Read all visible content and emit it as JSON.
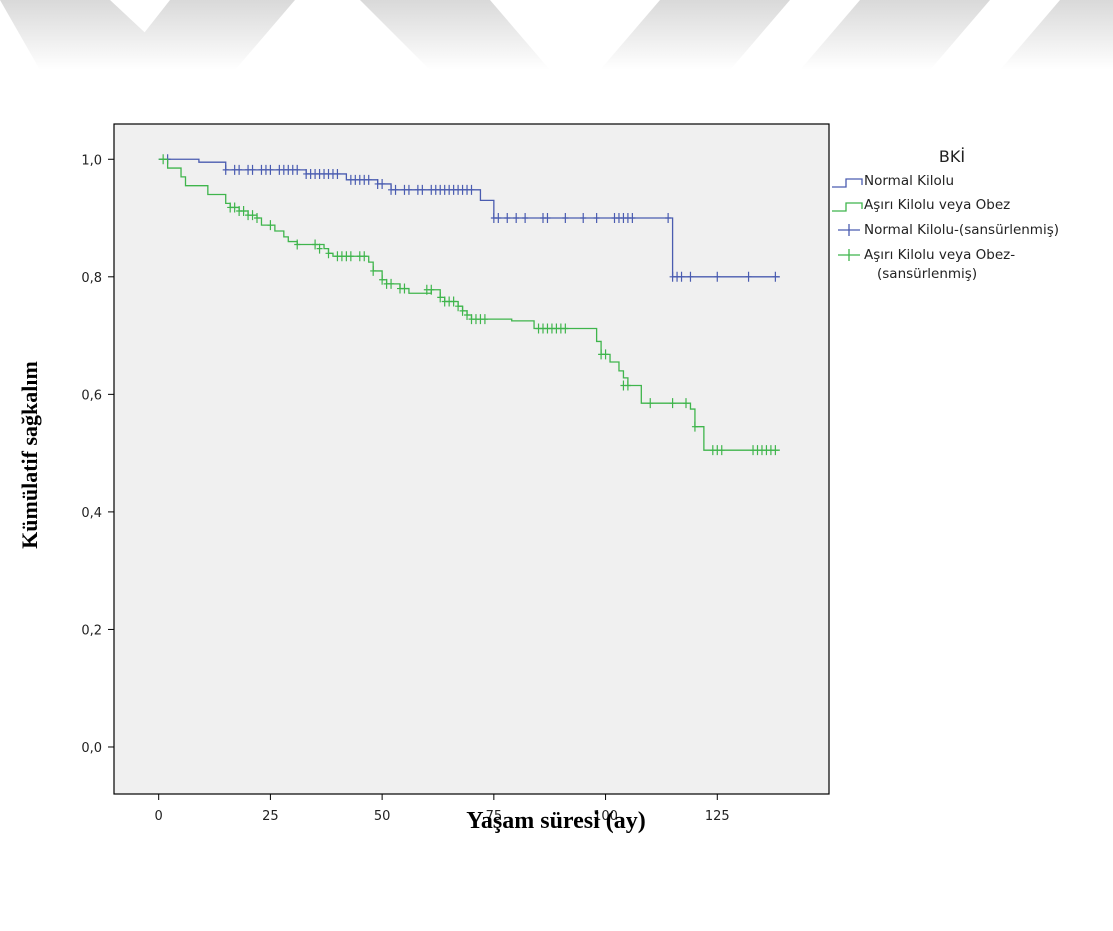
{
  "chart_data": {
    "type": "line",
    "subtype": "kaplan-meier step",
    "xlabel": "Yaşam süresi (ay)",
    "ylabel": "Kümülatif sağkalım",
    "xlim": [
      -10,
      150
    ],
    "ylim": [
      -0.08,
      1.06
    ],
    "x_ticks": [
      0,
      25,
      50,
      75,
      100,
      125
    ],
    "x_tick_labels": [
      "0",
      "25",
      "50",
      "75",
      "100",
      "125"
    ],
    "y_ticks": [
      0.0,
      0.2,
      0.4,
      0.6,
      0.8,
      1.0
    ],
    "y_tick_labels": [
      "0,0",
      "0,2",
      "0,4",
      "0,6",
      "0,8",
      "1,0"
    ],
    "grid": false,
    "legend": {
      "title": "BKİ",
      "placement": "right",
      "entries": [
        {
          "label": "Normal Kilolu",
          "kind": "line",
          "color": "#4a5cb0"
        },
        {
          "label": "Aşırı Kilolu veya Obez",
          "kind": "line",
          "color": "#3fb54c"
        },
        {
          "label": "Normal Kilolu-(sansürlenmiş)",
          "kind": "censor",
          "color": "#4a5cb0"
        },
        {
          "label": "Aşırı Kilolu veya Obez-",
          "label2": "(sansürlenmiş)",
          "kind": "censor",
          "color": "#3fb54c"
        }
      ]
    },
    "series": [
      {
        "name": "Normal Kilolu",
        "color": "#4a5cb0",
        "steps": [
          [
            0,
            1.0
          ],
          [
            9,
            0.995
          ],
          [
            15,
            0.982
          ],
          [
            33,
            0.975
          ],
          [
            42,
            0.965
          ],
          [
            49,
            0.958
          ],
          [
            52,
            0.948
          ],
          [
            72,
            0.93
          ],
          [
            75,
            0.9
          ],
          [
            115,
            0.8
          ],
          [
            139,
            0.8
          ]
        ],
        "censored": [
          [
            2,
            1.0
          ],
          [
            15,
            0.982
          ],
          [
            17,
            0.982
          ],
          [
            18,
            0.982
          ],
          [
            20,
            0.982
          ],
          [
            21,
            0.982
          ],
          [
            23,
            0.982
          ],
          [
            24,
            0.982
          ],
          [
            25,
            0.982
          ],
          [
            27,
            0.982
          ],
          [
            28,
            0.982
          ],
          [
            29,
            0.982
          ],
          [
            30,
            0.982
          ],
          [
            31,
            0.982
          ],
          [
            33,
            0.975
          ],
          [
            34,
            0.975
          ],
          [
            35,
            0.975
          ],
          [
            36,
            0.975
          ],
          [
            37,
            0.975
          ],
          [
            38,
            0.975
          ],
          [
            39,
            0.975
          ],
          [
            40,
            0.975
          ],
          [
            43,
            0.965
          ],
          [
            44,
            0.965
          ],
          [
            45,
            0.965
          ],
          [
            46,
            0.965
          ],
          [
            47,
            0.965
          ],
          [
            49,
            0.958
          ],
          [
            50,
            0.958
          ],
          [
            52,
            0.948
          ],
          [
            53,
            0.948
          ],
          [
            55,
            0.948
          ],
          [
            56,
            0.948
          ],
          [
            58,
            0.948
          ],
          [
            59,
            0.948
          ],
          [
            61,
            0.948
          ],
          [
            62,
            0.948
          ],
          [
            63,
            0.948
          ],
          [
            64,
            0.948
          ],
          [
            65,
            0.948
          ],
          [
            66,
            0.948
          ],
          [
            67,
            0.948
          ],
          [
            68,
            0.948
          ],
          [
            69,
            0.948
          ],
          [
            70,
            0.948
          ],
          [
            75,
            0.9
          ],
          [
            76,
            0.9
          ],
          [
            78,
            0.9
          ],
          [
            80,
            0.9
          ],
          [
            82,
            0.9
          ],
          [
            86,
            0.9
          ],
          [
            87,
            0.9
          ],
          [
            91,
            0.9
          ],
          [
            95,
            0.9
          ],
          [
            98,
            0.9
          ],
          [
            102,
            0.9
          ],
          [
            103,
            0.9
          ],
          [
            104,
            0.9
          ],
          [
            105,
            0.9
          ],
          [
            106,
            0.9
          ],
          [
            114,
            0.9
          ],
          [
            115,
            0.8
          ],
          [
            116,
            0.8
          ],
          [
            117,
            0.8
          ],
          [
            119,
            0.8
          ],
          [
            125,
            0.8
          ],
          [
            132,
            0.8
          ],
          [
            138,
            0.8
          ]
        ]
      },
      {
        "name": "Aşırı Kilolu veya Obez",
        "color": "#3fb54c",
        "steps": [
          [
            0,
            1.0
          ],
          [
            2,
            0.985
          ],
          [
            5,
            0.97
          ],
          [
            6,
            0.955
          ],
          [
            11,
            0.94
          ],
          [
            15,
            0.925
          ],
          [
            16,
            0.918
          ],
          [
            18,
            0.912
          ],
          [
            20,
            0.905
          ],
          [
            22,
            0.9
          ],
          [
            23,
            0.888
          ],
          [
            26,
            0.878
          ],
          [
            28,
            0.868
          ],
          [
            29,
            0.86
          ],
          [
            31,
            0.855
          ],
          [
            37,
            0.848
          ],
          [
            38,
            0.84
          ],
          [
            39,
            0.835
          ],
          [
            47,
            0.825
          ],
          [
            48,
            0.81
          ],
          [
            50,
            0.795
          ],
          [
            51,
            0.788
          ],
          [
            54,
            0.78
          ],
          [
            56,
            0.772
          ],
          [
            61,
            0.778
          ],
          [
            63,
            0.765
          ],
          [
            64,
            0.758
          ],
          [
            67,
            0.75
          ],
          [
            68,
            0.742
          ],
          [
            69,
            0.735
          ],
          [
            70,
            0.728
          ],
          [
            77,
            0.728
          ],
          [
            79,
            0.725
          ],
          [
            84,
            0.712
          ],
          [
            94,
            0.712
          ],
          [
            98,
            0.69
          ],
          [
            99,
            0.668
          ],
          [
            101,
            0.655
          ],
          [
            103,
            0.64
          ],
          [
            104,
            0.628
          ],
          [
            105,
            0.615
          ],
          [
            108,
            0.585
          ],
          [
            119,
            0.575
          ],
          [
            120,
            0.545
          ],
          [
            122,
            0.505
          ],
          [
            139,
            0.505
          ]
        ],
        "censored": [
          [
            1,
            1.0
          ],
          [
            16,
            0.918
          ],
          [
            17,
            0.918
          ],
          [
            18,
            0.912
          ],
          [
            19,
            0.912
          ],
          [
            20,
            0.905
          ],
          [
            21,
            0.905
          ],
          [
            22,
            0.9
          ],
          [
            25,
            0.888
          ],
          [
            31,
            0.855
          ],
          [
            35,
            0.855
          ],
          [
            36,
            0.848
          ],
          [
            38,
            0.84
          ],
          [
            40,
            0.835
          ],
          [
            41,
            0.835
          ],
          [
            42,
            0.835
          ],
          [
            43,
            0.835
          ],
          [
            45,
            0.835
          ],
          [
            46,
            0.835
          ],
          [
            48,
            0.81
          ],
          [
            50,
            0.795
          ],
          [
            51,
            0.788
          ],
          [
            52,
            0.788
          ],
          [
            54,
            0.78
          ],
          [
            55,
            0.78
          ],
          [
            60,
            0.778
          ],
          [
            61,
            0.778
          ],
          [
            63,
            0.765
          ],
          [
            64,
            0.758
          ],
          [
            65,
            0.758
          ],
          [
            66,
            0.758
          ],
          [
            67,
            0.75
          ],
          [
            68,
            0.742
          ],
          [
            69,
            0.735
          ],
          [
            70,
            0.728
          ],
          [
            71,
            0.728
          ],
          [
            72,
            0.728
          ],
          [
            73,
            0.728
          ],
          [
            85,
            0.712
          ],
          [
            86,
            0.712
          ],
          [
            87,
            0.712
          ],
          [
            88,
            0.712
          ],
          [
            89,
            0.712
          ],
          [
            90,
            0.712
          ],
          [
            91,
            0.712
          ],
          [
            99,
            0.668
          ],
          [
            100,
            0.668
          ],
          [
            104,
            0.615
          ],
          [
            105,
            0.615
          ],
          [
            110,
            0.585
          ],
          [
            115,
            0.585
          ],
          [
            118,
            0.585
          ],
          [
            120,
            0.545
          ],
          [
            124,
            0.505
          ],
          [
            125,
            0.505
          ],
          [
            126,
            0.505
          ],
          [
            133,
            0.505
          ],
          [
            134,
            0.505
          ],
          [
            135,
            0.505
          ],
          [
            136,
            0.505
          ],
          [
            137,
            0.505
          ],
          [
            138,
            0.505
          ]
        ]
      }
    ]
  }
}
